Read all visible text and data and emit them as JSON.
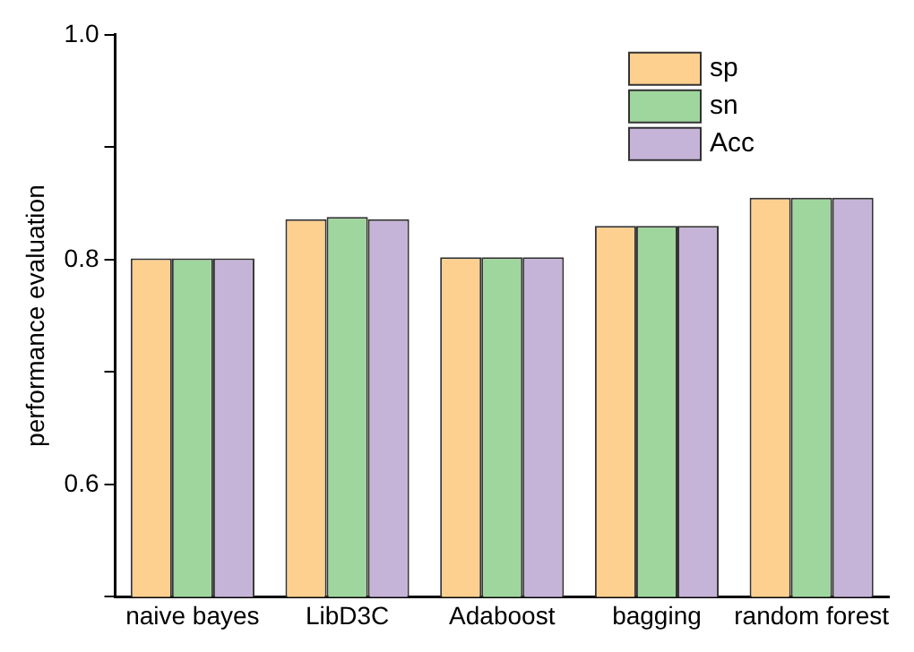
{
  "chart_data": {
    "type": "bar",
    "ylabel": "performance evaluation",
    "categories": [
      "naive bayes",
      "LibD3C",
      "Adaboost",
      "bagging",
      "random forest"
    ],
    "series": [
      {
        "name": "sp",
        "color": "#fed08f",
        "values": [
          0.801,
          0.836,
          0.802,
          0.83,
          0.855
        ]
      },
      {
        "name": "sn",
        "color": "#9fd69d",
        "values": [
          0.801,
          0.838,
          0.802,
          0.83,
          0.855
        ]
      },
      {
        "name": "Acc",
        "color": "#c6b4d8",
        "values": [
          0.801,
          0.836,
          0.802,
          0.83,
          0.855
        ]
      }
    ],
    "ylim": [
      0.5,
      1.0
    ],
    "yticks": [
      {
        "value": 0.5,
        "label": null
      },
      0.6,
      {
        "value": 0.7,
        "label": null
      },
      0.8,
      {
        "value": 0.9,
        "label": null
      },
      {
        "value": 1.0,
        "label": "1.0"
      }
    ],
    "grid": false,
    "legend": "top right"
  }
}
